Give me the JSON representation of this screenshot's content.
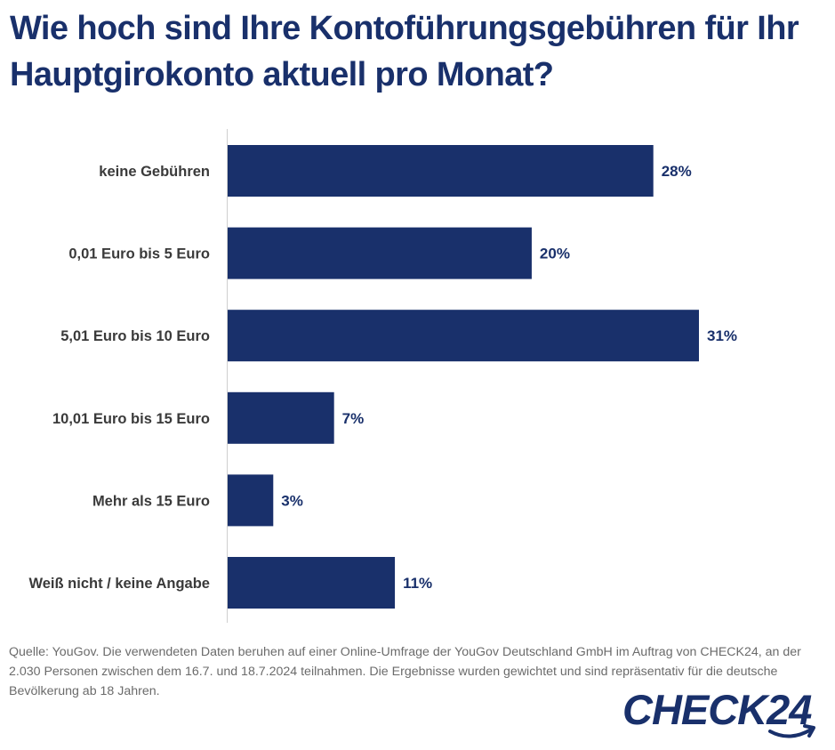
{
  "title": "Wie hoch sind Ihre Kontoführungsgebühren für Ihr Hauptgirokonto aktuell pro Monat?",
  "chart_data": {
    "type": "bar",
    "orientation": "horizontal",
    "categories": [
      "keine Gebühren",
      "0,01 Euro bis 5 Euro",
      "5,01 Euro bis 10 Euro",
      "10,01 Euro bis 15 Euro",
      "Mehr als 15 Euro",
      "Weiß nicht / keine Angabe"
    ],
    "values": [
      28,
      20,
      31,
      7,
      3,
      11
    ],
    "value_labels": [
      "28%",
      "20%",
      "31%",
      "7%",
      "3%",
      "11%"
    ],
    "unit": "%",
    "xlim": [
      0,
      31
    ],
    "grid": false,
    "legend": "none",
    "bar_color": "#19306b"
  },
  "source": "Quelle: YouGov. Die verwendeten Daten beruhen auf einer Online-Umfrage der YouGov Deutschland GmbH im Auftrag von CHECK24, an der 2.030 Personen zwischen dem 16.7. und 18.7.2024 teilnahmen. Die Ergebnisse wurden gewichtet und sind repräsentativ für die deutsche Bevölkerung ab 18 Jahren.",
  "logo": {
    "text": "CHECK24",
    "color": "#19306b"
  }
}
